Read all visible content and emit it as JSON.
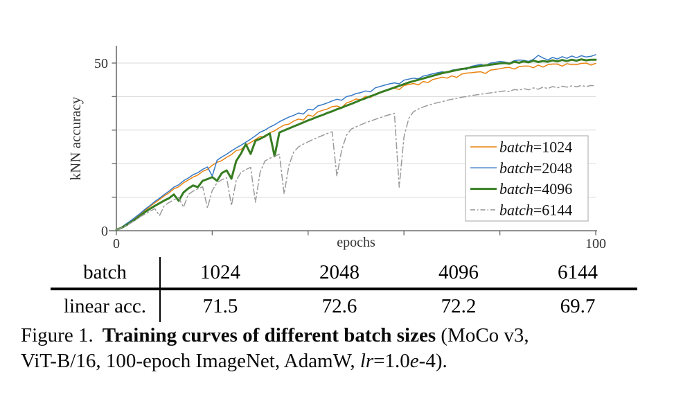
{
  "chart_data": {
    "type": "line",
    "title": "",
    "xlabel": "epochs",
    "ylabel": "kNN accuracy",
    "xlim": [
      0,
      100
    ],
    "ylim": [
      0,
      55
    ],
    "x_ticks": [
      0,
      20,
      40,
      60,
      80,
      100
    ],
    "x_tick_labels": [
      "0",
      "",
      "",
      "",
      "",
      "100"
    ],
    "y_ticks": [
      0,
      10,
      20,
      30,
      40,
      50
    ],
    "y_tick_labels": [
      "0",
      "",
      "",
      "",
      "",
      "50"
    ],
    "y_gridlines": [
      10,
      20,
      30,
      40,
      50
    ],
    "grid": "horizontal-only",
    "legend_position": "right-middle",
    "x_start": 0,
    "x_step": 1,
    "series": [
      {
        "name": "batch=1024",
        "var": "batch",
        "value": "1024",
        "color": "#e8820e",
        "line_width": 1.5,
        "dash": null,
        "values": [
          0.3,
          1.0,
          1.9,
          2.9,
          3.9,
          5.0,
          6.1,
          7.2,
          8.3,
          9.3,
          10.4,
          11.3,
          12.5,
          13.1,
          14.3,
          15.1,
          16.0,
          16.6,
          17.7,
          18.3,
          19.5,
          20.4,
          20.9,
          21.9,
          22.7,
          23.9,
          24.2,
          25.5,
          26.3,
          27.2,
          28.1,
          27.9,
          29.2,
          29.8,
          30.7,
          31.5,
          31.8,
          32.7,
          33.3,
          33.0,
          34.5,
          34.1,
          35.4,
          35.9,
          36.3,
          37.0,
          37.2,
          36.7,
          38.1,
          38.6,
          39.3,
          39.0,
          40.1,
          39.7,
          40.8,
          41.3,
          41.8,
          42.1,
          42.5,
          42.1,
          43.3,
          43.6,
          43.9,
          43.5,
          44.5,
          44.2,
          45.1,
          45.4,
          45.8,
          45.5,
          46.2,
          45.7,
          46.7,
          47.0,
          47.1,
          47.3,
          47.4,
          46.9,
          47.9,
          48.1,
          48.3,
          48.6,
          48.7,
          48.2,
          48.9,
          49.1,
          49.1,
          48.6,
          49.4,
          48.8,
          49.5,
          49.7,
          49.7,
          49.1,
          49.8,
          49.5,
          49.5,
          49.9,
          50.0,
          49.4,
          49.9
        ]
      },
      {
        "name": "batch=2048",
        "var": "batch",
        "value": "2048",
        "color": "#3579c6",
        "line_width": 1.5,
        "dash": null,
        "values": [
          0.3,
          1.0,
          2.0,
          3.0,
          4.1,
          5.2,
          6.4,
          7.5,
          8.7,
          9.7,
          10.8,
          11.8,
          13.0,
          13.7,
          14.9,
          15.7,
          16.7,
          17.3,
          18.3,
          19.0,
          16.3,
          21.0,
          22.0,
          22.8,
          23.8,
          24.7,
          25.5,
          26.4,
          27.3,
          28.3,
          29.4,
          30.0,
          30.9,
          31.6,
          32.5,
          33.2,
          33.9,
          34.4,
          35.1,
          34.8,
          36.2,
          36.0,
          37.2,
          37.6,
          38.1,
          38.7,
          39.2,
          38.9,
          40.0,
          40.3,
          40.9,
          41.2,
          41.7,
          41.4,
          42.6,
          43.0,
          43.4,
          43.8,
          44.1,
          43.8,
          44.9,
          45.2,
          45.5,
          45.3,
          46.1,
          46.4,
          46.8,
          47.1,
          47.4,
          47.1,
          47.9,
          48.1,
          48.4,
          48.1,
          49.0,
          49.3,
          49.6,
          49.2,
          50.0,
          50.2,
          50.5,
          50.3,
          50.0,
          50.7,
          50.9,
          50.8,
          50.5,
          51.1,
          52.3,
          51.5,
          50.9,
          51.7,
          51.2,
          51.9,
          51.4,
          52.1,
          51.6,
          52.2,
          51.8,
          52.0,
          52.5
        ]
      },
      {
        "name": "batch=4096",
        "var": "batch",
        "value": "4096",
        "color": "#377d22",
        "line_width": 3,
        "dash": null,
        "values": [
          0.3,
          0.8,
          1.6,
          2.5,
          3.4,
          4.5,
          5.6,
          6.5,
          7.4,
          8.2,
          9.0,
          9.7,
          10.8,
          8.9,
          11.4,
          12.6,
          13.5,
          13.0,
          14.9,
          15.4,
          16.0,
          14.9,
          17.2,
          18.0,
          15.5,
          20.8,
          23.0,
          25.8,
          22.9,
          26.8,
          27.4,
          28.2,
          29.0,
          22.2,
          29.3,
          29.9,
          30.5,
          31.1,
          31.7,
          32.3,
          32.9,
          33.4,
          34.0,
          34.5,
          35.1,
          35.6,
          36.2,
          36.7,
          37.3,
          37.8,
          38.4,
          39.0,
          39.5,
          40.1,
          40.6,
          41.2,
          41.7,
          42.2,
          42.7,
          43.2,
          43.7,
          44.2,
          44.6,
          45.0,
          45.4,
          45.8,
          46.2,
          46.6,
          47.0,
          47.3,
          47.6,
          47.9,
          48.2,
          48.4,
          48.7,
          48.9,
          49.1,
          49.3,
          49.5,
          49.7,
          49.9,
          50.0,
          49.8,
          50.4,
          50.1,
          50.5,
          50.2,
          50.7,
          50.3,
          50.6,
          50.4,
          50.8,
          50.5,
          50.9,
          50.6,
          51.0,
          50.7,
          51.1,
          50.8,
          51.0,
          51.0
        ]
      },
      {
        "name": "batch=6144",
        "var": "batch",
        "value": "6144",
        "color": "#9a9a9a",
        "line_width": 1.5,
        "dash": "9 4 2 4",
        "values": [
          0.3,
          0.8,
          1.5,
          2.3,
          3.2,
          4.2,
          5.0,
          5.8,
          6.6,
          4.5,
          7.5,
          8.4,
          9.2,
          9.9,
          7.0,
          10.8,
          11.8,
          12.5,
          13.1,
          6.8,
          12.0,
          14.3,
          15.2,
          15.8,
          7.5,
          15.0,
          17.4,
          18.2,
          18.9,
          8.5,
          17.5,
          20.8,
          21.6,
          22.2,
          22.8,
          11.0,
          19.5,
          23.5,
          25.0,
          25.8,
          26.5,
          27.2,
          27.8,
          28.4,
          29.0,
          29.5,
          16.3,
          24.0,
          28.5,
          30.3,
          31.0,
          31.6,
          32.2,
          32.7,
          33.2,
          33.7,
          34.2,
          34.6,
          35.0,
          13.0,
          28.0,
          33.5,
          35.5,
          36.3,
          36.9,
          37.4,
          37.8,
          38.2,
          38.5,
          38.9,
          39.2,
          39.5,
          39.8,
          40.0,
          40.3,
          40.5,
          40.7,
          40.9,
          41.1,
          41.3,
          41.5,
          41.7,
          41.5,
          42.1,
          41.9,
          42.4,
          42.0,
          42.6,
          42.2,
          42.8,
          42.4,
          43.0,
          42.6,
          43.1,
          42.8,
          43.2,
          42.9,
          43.3,
          43.0,
          43.3,
          43.2
        ]
      }
    ]
  },
  "table": {
    "header_row": {
      "label": "batch",
      "values": [
        "1024",
        "2048",
        "4096",
        "6144"
      ]
    },
    "acc_row": {
      "label": "linear acc.",
      "values": [
        "71.5",
        "72.6",
        "72.2",
        "69.7"
      ]
    }
  },
  "caption": {
    "figure_label": "Figure 1.",
    "title_bold": "Training curves of different batch sizes",
    "after_title": " (MoCo v3,",
    "line2_pre": "ViT-B/16, 100-epoch ImageNet, AdamW, ",
    "lr_var": "lr",
    "eq_mid": "=1.0",
    "e_var": "e",
    "line2_end": "-4)."
  }
}
